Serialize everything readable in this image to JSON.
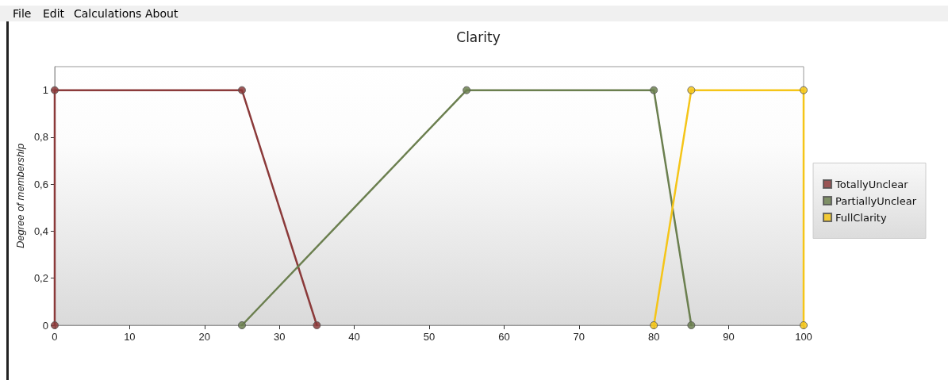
{
  "chart_data": {
    "type": "line",
    "title": "Clarity",
    "ylabel": "Degree of membership",
    "annotations": [
      "File",
      "Edit",
      "Calculations",
      "About"
    ],
    "series": [
      {
        "name": "TotallyUnclear",
        "color": "#8b3a3a",
        "x": [
          0,
          0,
          25,
          35
        ],
        "values": [
          0,
          1,
          1,
          0
        ]
      },
      {
        "name": "PartiallyUnclear",
        "color": "#6b7f4f",
        "x": [
          25,
          55,
          80,
          85
        ],
        "values": [
          0,
          1,
          1,
          0
        ]
      },
      {
        "name": "FullClarity",
        "color": "#f5c518",
        "x": [
          80,
          85,
          100,
          100
        ],
        "values": [
          0,
          1,
          1,
          0
        ]
      }
    ],
    "xlim": [
      0,
      100
    ],
    "xticks": [
      0,
      10,
      20,
      30,
      40,
      50,
      60,
      70,
      80,
      90,
      100
    ],
    "ylim": [
      0,
      1.1
    ],
    "yticks": [
      0,
      {
        "value": 0.2,
        "label": "0,2"
      },
      {
        "value": 0.4,
        "label": "0,4"
      },
      {
        "value": 0.6,
        "label": "0,6"
      },
      {
        "value": 0.8,
        "label": "0,8"
      },
      1
    ],
    "grid": false,
    "legend": "right",
    "marker": "circle",
    "line_style": "solid"
  }
}
